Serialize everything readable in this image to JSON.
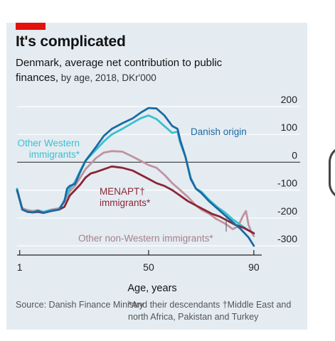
{
  "title": "It's complicated",
  "subtitle": "Denmark, average net contribution to public finances,",
  "subtitle_detail": " by age, 2018, DKr'000",
  "source": "Source: Danish Finance Ministry",
  "footnote": "*And their descendants  †Middle East and north Africa, Pakistan and Turkey",
  "colors": {
    "danish_origin": "#1a6aa3",
    "other_western": "#3cbfcf",
    "other_non_western": "#c0939f",
    "menapt": "#8b2535",
    "background": "#e4ecf2",
    "accent": "#e3120b"
  },
  "chart_data": {
    "type": "line",
    "title": "It's complicated",
    "subtitle": "Denmark, average net contribution to public finances, by age, 2018, DKr'000",
    "xlabel": "Age, years",
    "ylabel": "",
    "xlim": [
      0,
      93
    ],
    "ylim": [
      -300,
      200
    ],
    "x_ticks": [
      1,
      50,
      90
    ],
    "y_ticks": [
      200,
      100,
      0,
      -100,
      -200,
      -300
    ],
    "grid": true,
    "y_axis_side": "right",
    "annotations": [
      "Danish origin",
      "Other Western immigrants*",
      "MENAPT† immigrants*",
      "Other non-Western immigrants*"
    ],
    "series": [
      {
        "name": "Danish origin",
        "color": "#1a6aa3",
        "x": [
          0,
          2,
          4,
          6,
          8,
          10,
          13,
          16,
          18,
          19,
          20,
          22,
          24,
          26,
          28,
          30,
          33,
          36,
          40,
          44,
          47,
          50,
          53,
          56,
          59,
          61,
          62,
          64,
          66,
          68,
          70,
          73,
          76,
          79,
          82,
          85,
          88,
          90
        ],
        "y": [
          -100,
          -170,
          -178,
          -180,
          -175,
          -182,
          -175,
          -170,
          -140,
          -95,
          -85,
          -78,
          -35,
          5,
          30,
          55,
          95,
          120,
          140,
          158,
          178,
          195,
          193,
          168,
          130,
          120,
          80,
          20,
          -60,
          -95,
          -110,
          -140,
          -165,
          -190,
          -215,
          -240,
          -270,
          -300
        ]
      },
      {
        "name": "Other Western immigrants*",
        "color": "#3cbfcf",
        "x": [
          0,
          2,
          4,
          6,
          8,
          10,
          13,
          16,
          18,
          20,
          22,
          24,
          26,
          28,
          30,
          33,
          36,
          40,
          44,
          47,
          50,
          53,
          56,
          59,
          61,
          62,
          64,
          66,
          68,
          70,
          73,
          76,
          79,
          82,
          85,
          88,
          90
        ],
        "y": [
          -95,
          -170,
          -178,
          -178,
          -175,
          -178,
          -172,
          -170,
          -135,
          -95,
          -70,
          -30,
          5,
          25,
          45,
          75,
          100,
          120,
          142,
          158,
          168,
          155,
          130,
          105,
          110,
          70,
          20,
          -55,
          -95,
          -105,
          -135,
          -160,
          -180,
          -205,
          -225,
          -245,
          -255
        ]
      },
      {
        "name": "Other non-Western immigrants*",
        "color": "#c0939f",
        "x": [
          0,
          2,
          4,
          6,
          8,
          10,
          13,
          16,
          18,
          20,
          22,
          24,
          26,
          28,
          30,
          33,
          36,
          40,
          44,
          47,
          50,
          53,
          56,
          59,
          62,
          65,
          68,
          70,
          73,
          76,
          79,
          82,
          84,
          86,
          87,
          88,
          89,
          90
        ],
        "y": [
          -100,
          -165,
          -172,
          -175,
          -172,
          -178,
          -170,
          -165,
          -140,
          -105,
          -85,
          -55,
          -25,
          -5,
          15,
          35,
          40,
          38,
          20,
          5,
          -10,
          -20,
          -45,
          -75,
          -100,
          -125,
          -155,
          -170,
          -185,
          -205,
          -220,
          -240,
          -230,
          -190,
          -175,
          -225,
          -250,
          -265
        ]
      },
      {
        "name": "MENAPT† immigrants*",
        "color": "#8b2535",
        "x": [
          0,
          2,
          4,
          6,
          8,
          10,
          13,
          16,
          18,
          20,
          22,
          24,
          26,
          28,
          30,
          33,
          36,
          40,
          44,
          47,
          50,
          53,
          56,
          59,
          62,
          65,
          68,
          71,
          74,
          77,
          80,
          83,
          86,
          88,
          90
        ],
        "y": [
          -100,
          -170,
          -178,
          -180,
          -178,
          -182,
          -175,
          -170,
          -160,
          -120,
          -100,
          -80,
          -55,
          -40,
          -35,
          -25,
          -15,
          -20,
          -30,
          -45,
          -60,
          -75,
          -85,
          -100,
          -120,
          -140,
          -155,
          -170,
          -185,
          -195,
          -210,
          -225,
          -235,
          -245,
          -255
        ]
      }
    ]
  }
}
